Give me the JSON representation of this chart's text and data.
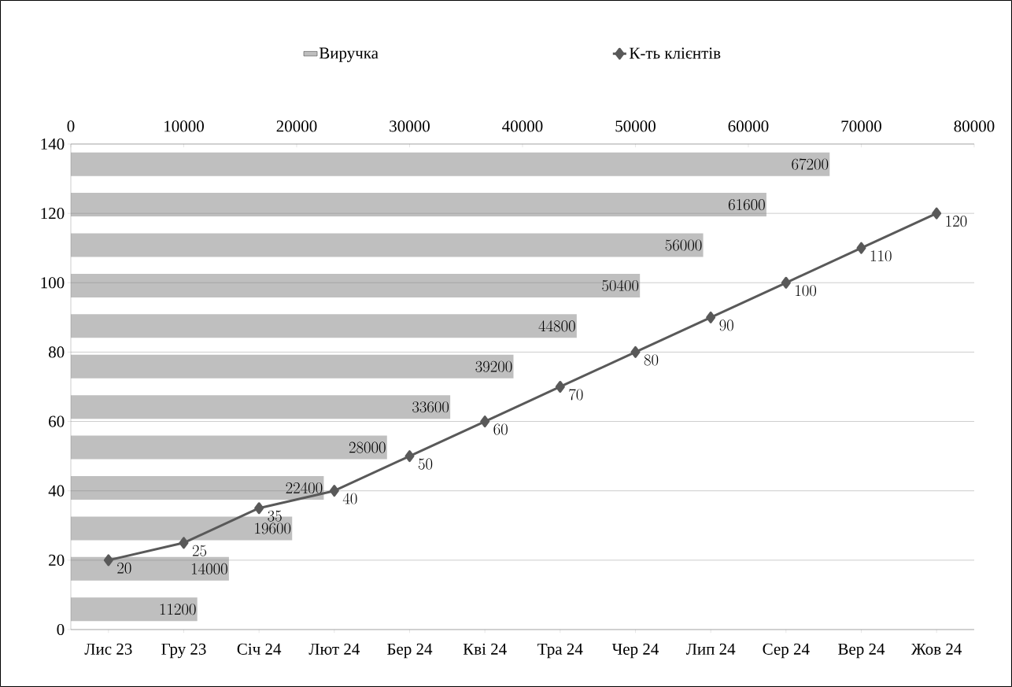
{
  "chart_data": [
    {
      "type": "bar",
      "orientation": "horizontal",
      "categories": [
        null,
        null,
        null,
        null,
        null,
        null,
        null,
        null,
        null,
        null,
        null,
        null
      ],
      "series": [
        {
          "name": "Виручка",
          "color": "#bfbfbf",
          "values": [
            67200,
            61600,
            56000,
            50400,
            44800,
            39200,
            33600,
            28000,
            22400,
            19600,
            14000,
            11200
          ]
        }
      ],
      "xlim": [
        0,
        80000
      ],
      "xticks": [
        0,
        10000,
        20000,
        30000,
        40000,
        50000,
        60000,
        70000,
        80000
      ],
      "data_labels": true,
      "legend": "top"
    },
    {
      "type": "line",
      "categories": [
        "Лис 23",
        "Гру 23",
        "Січ 24",
        "Лют 24",
        "Бер 24",
        "Кві 24",
        "Тра 24",
        "Чер 24",
        "Лип 24",
        "Сер 24",
        "Вер 24",
        "Жов 24"
      ],
      "series": [
        {
          "name": "К-ть клієнтів",
          "color": "#595959",
          "values": [
            20,
            25,
            35,
            40,
            50,
            60,
            70,
            80,
            90,
            100,
            110,
            120
          ]
        }
      ],
      "ylim": [
        0,
        140
      ],
      "yticks": [
        0,
        20,
        40,
        60,
        80,
        100,
        120,
        140
      ],
      "grid": "y",
      "marker": "diamond",
      "line_style": "solid",
      "data_labels": true,
      "legend": "top"
    }
  ]
}
